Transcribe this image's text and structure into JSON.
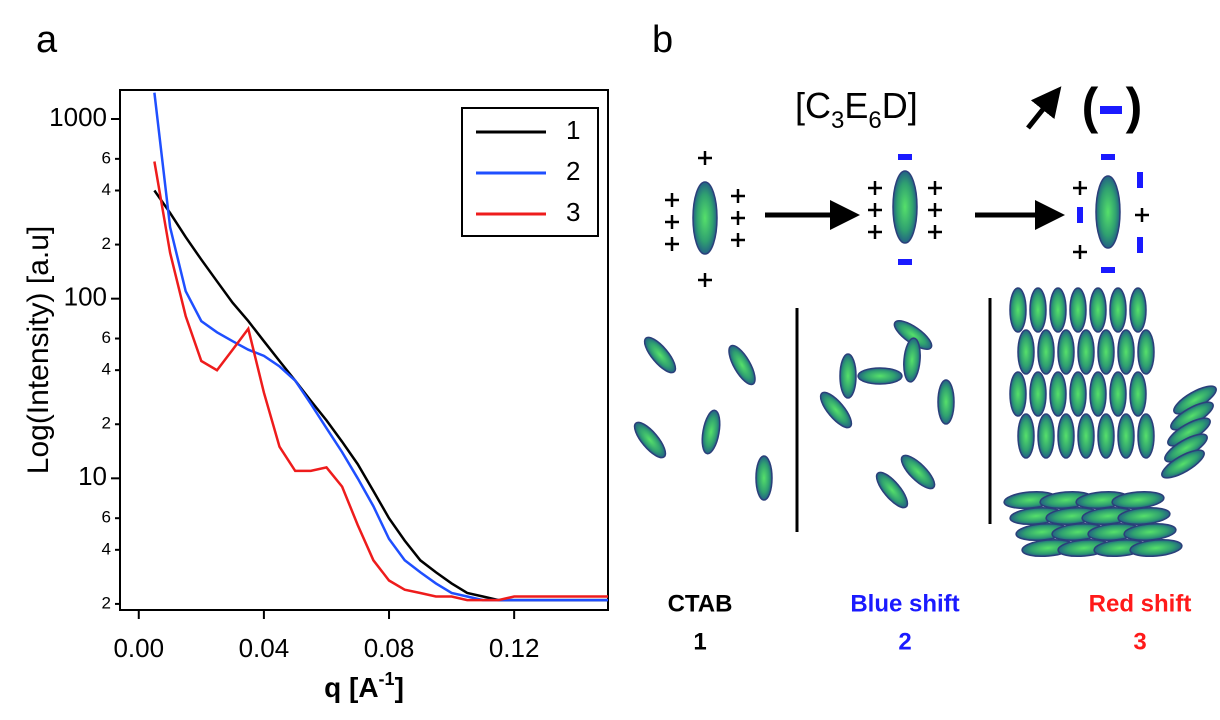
{
  "panel_labels": [
    "a",
    "b"
  ],
  "chart_data": {
    "type": "line",
    "log_y": true,
    "ylabel": "Log(Intensity) [a.u]",
    "xlabel_parts": [
      "q [A",
      "-1",
      "]"
    ],
    "xlim": [
      -0.006,
      0.15
    ],
    "ylim": [
      1.85,
      1450
    ],
    "xticks": [
      {
        "value": 0,
        "label": "0.00"
      },
      0.04,
      0.08,
      0.12
    ],
    "yticks": [
      {
        "value": 2,
        "label": "2"
      },
      {
        "value": 4,
        "label": "4"
      },
      {
        "value": 6,
        "label": "6"
      },
      10,
      {
        "value": 20,
        "label": "2"
      },
      {
        "value": 40,
        "label": "4"
      },
      {
        "value": 60,
        "label": "6"
      },
      100,
      {
        "value": 200,
        "label": "2"
      },
      {
        "value": 400,
        "label": "4"
      },
      {
        "value": 600,
        "label": "6"
      },
      1000
    ],
    "legend": "upper right",
    "x": [
      0.005,
      0.01,
      0.015,
      0.02,
      0.025,
      0.03,
      0.035,
      0.04,
      0.045,
      0.05,
      0.055,
      0.06,
      0.065,
      0.07,
      0.075,
      0.08,
      0.085,
      0.09,
      0.095,
      0.1,
      0.105,
      0.11,
      0.115,
      0.12,
      0.13,
      0.14,
      0.15
    ],
    "series": [
      {
        "name": "1",
        "color": "#000000",
        "values": [
          400,
          300,
          220,
          165,
          125,
          95,
          75,
          58,
          45,
          35,
          27,
          21,
          16,
          12,
          8.5,
          6,
          4.5,
          3.5,
          3,
          2.6,
          2.3,
          2.2,
          2.1,
          2.1,
          2.1,
          2.1,
          2.1
        ]
      },
      {
        "name": "2",
        "color": "#1f4fff",
        "values": [
          1400,
          250,
          110,
          75,
          65,
          58,
          52,
          48,
          42,
          35,
          26,
          19,
          14,
          10,
          7,
          4.6,
          3.5,
          3,
          2.6,
          2.3,
          2.2,
          2.1,
          2.1,
          2.1,
          2.1,
          2.1,
          2.1
        ]
      },
      {
        "name": "3",
        "color": "#ee1c1c",
        "values": [
          580,
          180,
          80,
          45,
          40,
          52,
          68,
          30,
          15,
          11,
          11,
          11.5,
          9,
          5.5,
          3.5,
          2.7,
          2.4,
          2.3,
          2.2,
          2.2,
          2.1,
          2.1,
          2.1,
          2.2,
          2.2,
          2.2,
          2.2
        ]
      }
    ]
  },
  "diagram": {
    "formula": [
      "[C",
      "3",
      "E",
      "6",
      "D]"
    ],
    "paren_open": "(",
    "paren_close": ")",
    "groups": [
      {
        "name": "CTAB",
        "number": "1",
        "color": "#000000"
      },
      {
        "name": "Blue shift",
        "number": "2",
        "color": "#1a1aff"
      },
      {
        "name": "Red shift",
        "number": "3",
        "color": "#ff1a1a"
      }
    ]
  }
}
